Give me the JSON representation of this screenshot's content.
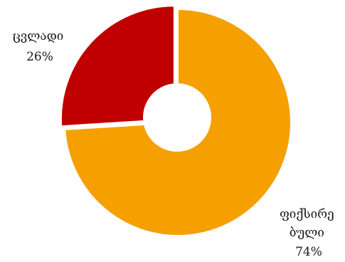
{
  "chart_data": {
    "type": "pie",
    "categories": [
      "ფიქსირებული",
      "ცვლადი"
    ],
    "values": [
      74,
      26
    ],
    "unit": "%",
    "colors": [
      "#F5A000",
      "#C00000"
    ],
    "labels": [
      {
        "lines": [
          "ფიქსირე",
          "ბული",
          "74%"
        ]
      },
      {
        "lines": [
          "ცვლადი",
          "26%"
        ]
      }
    ],
    "legend": "none",
    "title": ""
  }
}
